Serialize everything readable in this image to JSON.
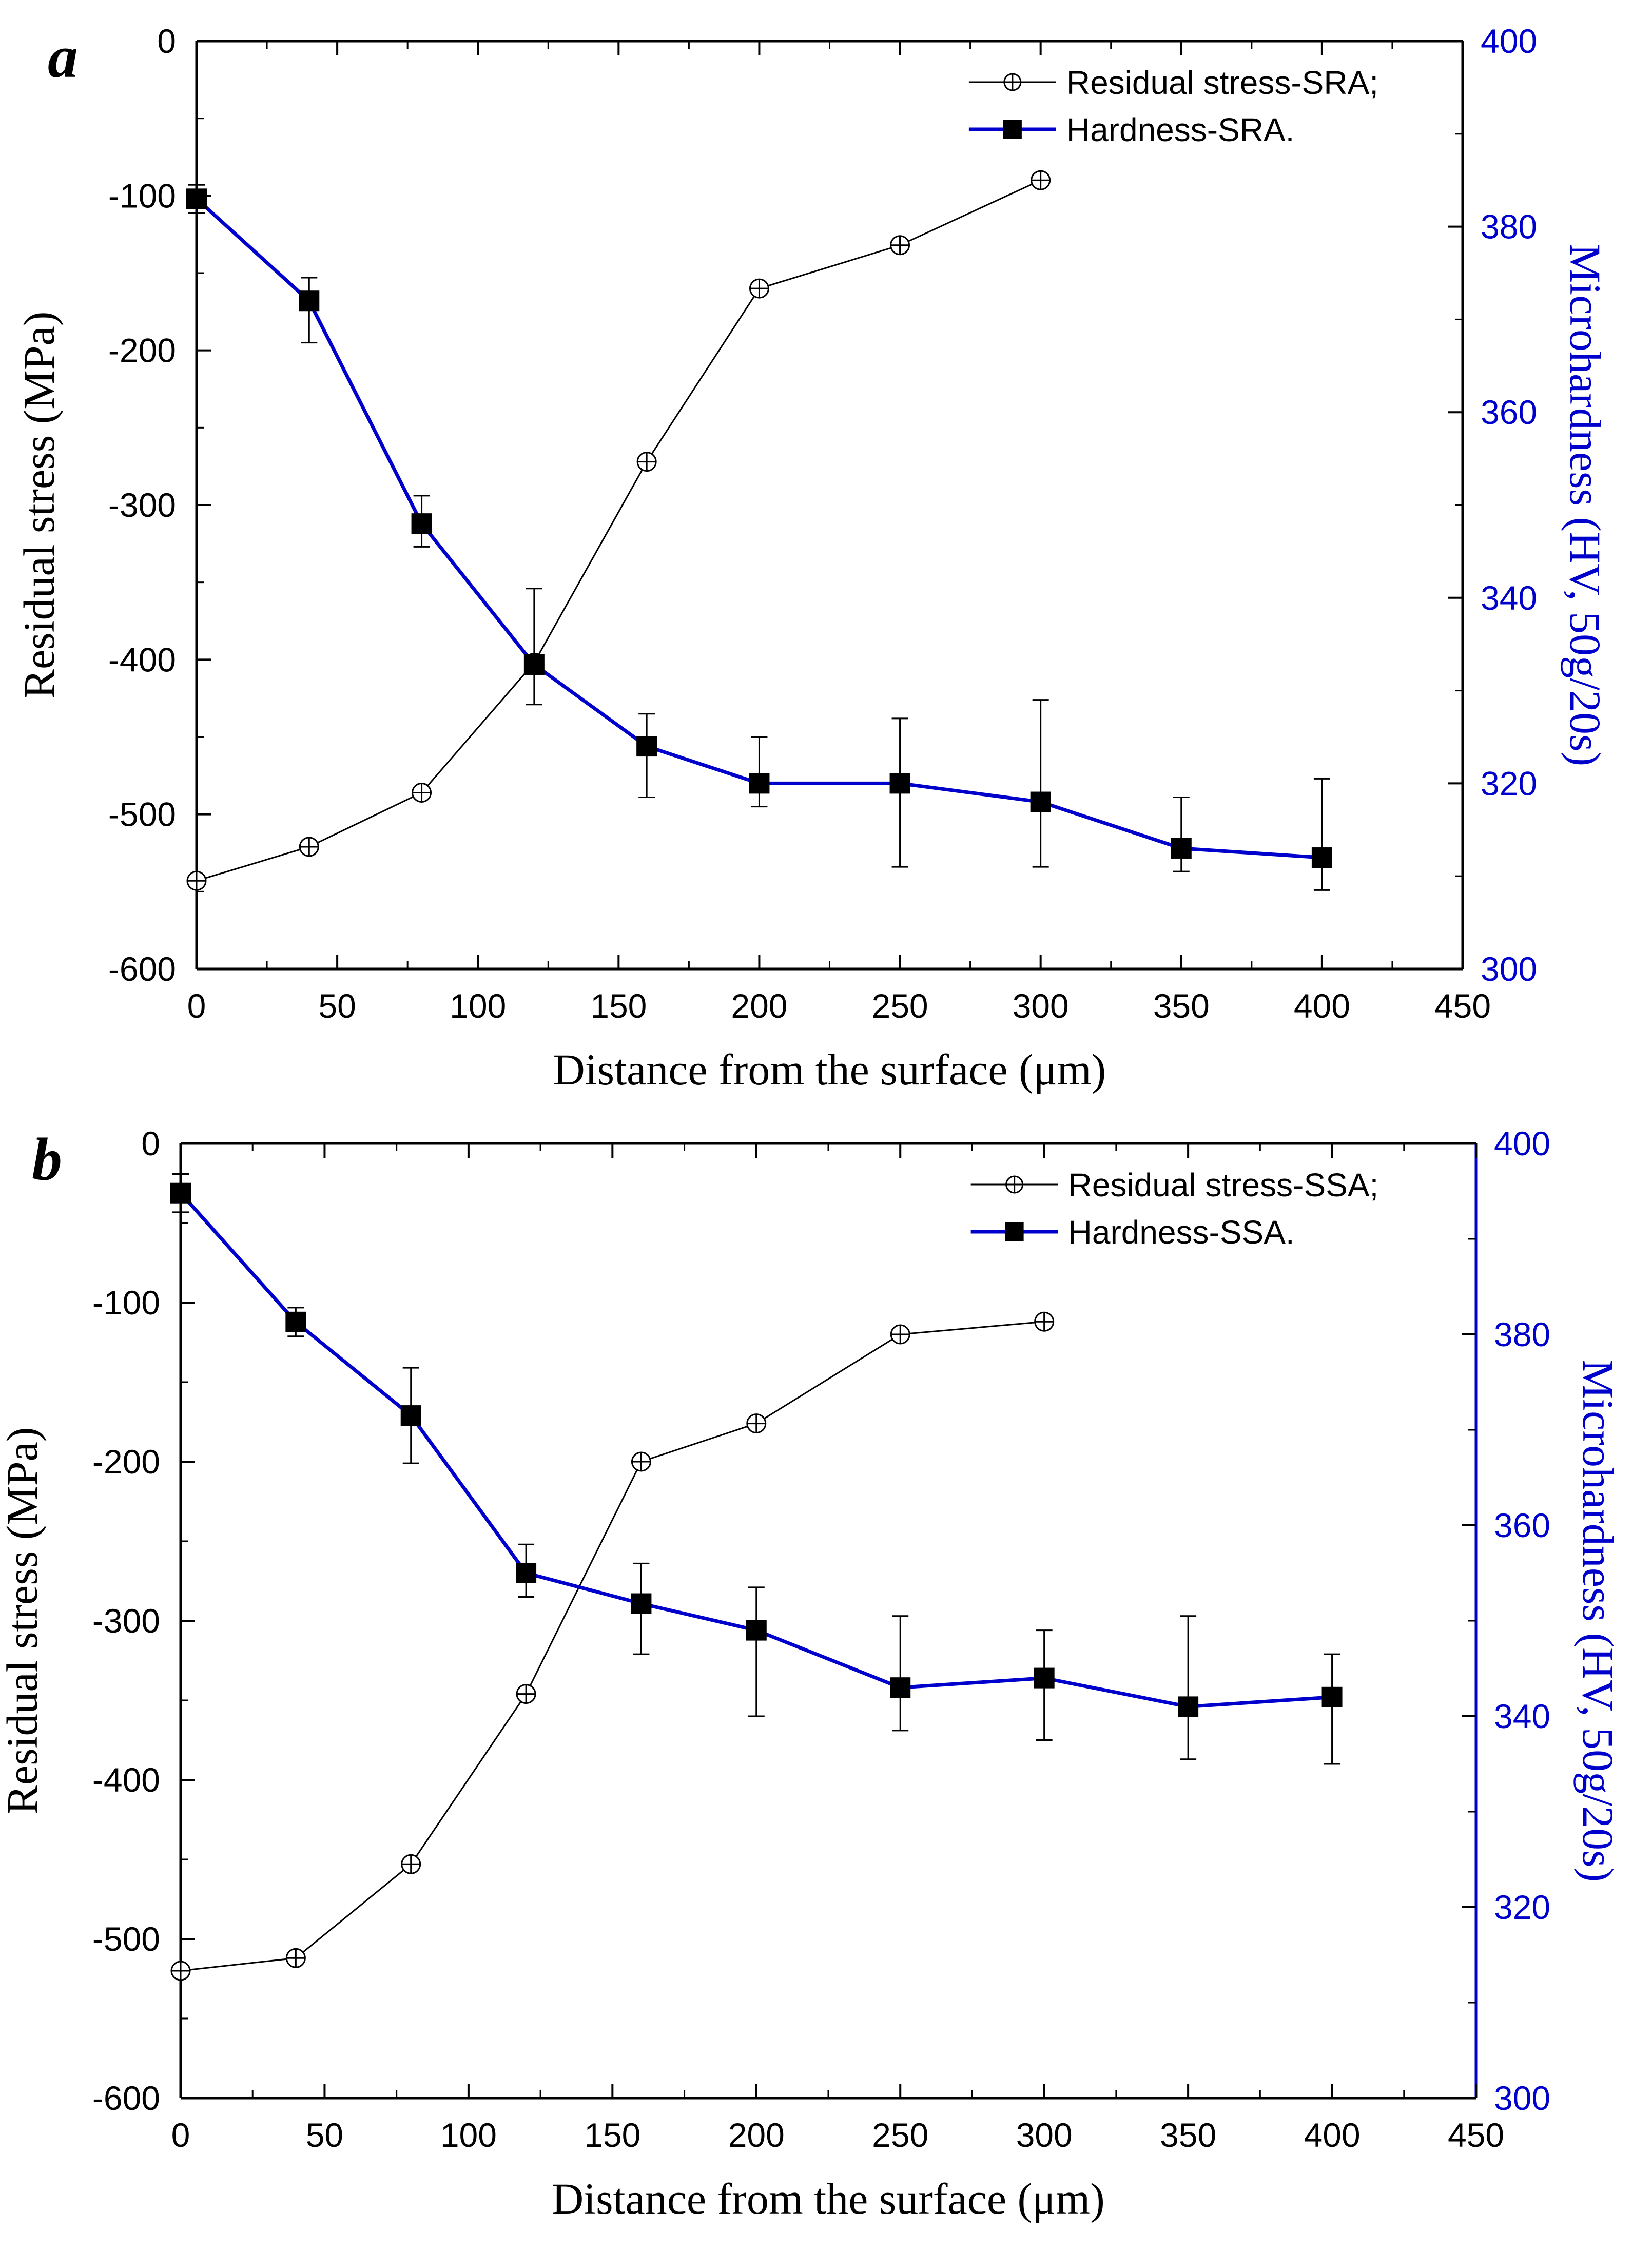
{
  "colors": {
    "axis": "#000000",
    "hardness": "#0000CC",
    "stress": "#000000",
    "right_axis_text": "#0000CC"
  },
  "chart_data": [
    {
      "panel_label": "a",
      "type": "line",
      "xlabel": "Distance from the surface (μm)",
      "ylabel": "Residual stress (MPa)",
      "y2label": "Microhardness (HV, 50g/20s)",
      "xlim": [
        0,
        450
      ],
      "ylim": [
        -600,
        0
      ],
      "y2lim": [
        300,
        400
      ],
      "x_ticks": [
        "0",
        "50",
        "100",
        "150",
        "200",
        "250",
        "300",
        "350",
        "400",
        "450"
      ],
      "y_ticks": [
        "0",
        "-100",
        "-200",
        "-300",
        "-400",
        "-500",
        "-600"
      ],
      "y2_ticks": [
        "400",
        "380",
        "360",
        "340",
        "320",
        "300"
      ],
      "legend_position": "top-right",
      "series": [
        {
          "name": "Residual stress-SRA;",
          "axis": "left",
          "marker": "circle-plus",
          "x": [
            0,
            40,
            80,
            120,
            160,
            200,
            250,
            300
          ],
          "values": [
            -543,
            -521,
            -486,
            -402,
            -272,
            -160,
            -132,
            -90
          ]
        },
        {
          "name": "Hardness-SRA.",
          "axis": "right",
          "marker": "square",
          "x": [
            0,
            40,
            80,
            120,
            160,
            200,
            250,
            300,
            350,
            400
          ],
          "values": [
            383.0,
            372.0,
            348.0,
            332.8,
            324.0,
            320.0,
            320.0,
            318.0,
            313.0,
            312.0
          ],
          "err_upper": [
            384.5,
            374.5,
            351.0,
            341.0,
            327.5,
            325.0,
            327.0,
            329.0,
            318.5,
            320.5
          ],
          "err_lower": [
            381.5,
            367.5,
            345.5,
            328.5,
            318.5,
            317.5,
            311.0,
            311.0,
            310.5,
            308.5
          ]
        }
      ]
    },
    {
      "panel_label": "b",
      "type": "line",
      "xlabel": "Distance from the surface (μm)",
      "ylabel": "Residual stress (MPa)",
      "y2label": "Microhardness (HV, 50g/20s)",
      "xlim": [
        0,
        450
      ],
      "ylim": [
        -600,
        0
      ],
      "y2lim": [
        300,
        400
      ],
      "x_ticks": [
        "0",
        "50",
        "100",
        "150",
        "200",
        "250",
        "300",
        "350",
        "400",
        "450"
      ],
      "y_ticks": [
        "0",
        "-100",
        "-200",
        "-300",
        "-400",
        "-500",
        "-600"
      ],
      "y2_ticks": [
        "400",
        "380",
        "360",
        "340",
        "320",
        "300"
      ],
      "legend_position": "top-right",
      "series": [
        {
          "name": "Residual stress-SSA;",
          "axis": "left",
          "marker": "circle-plus",
          "x": [
            0,
            40,
            80,
            120,
            160,
            200,
            250,
            300
          ],
          "values": [
            -520,
            -512,
            -453,
            -346,
            -200,
            -176,
            -120,
            -112
          ]
        },
        {
          "name": "Hardness-SSA.",
          "axis": "right",
          "marker": "square",
          "x": [
            0,
            40,
            80,
            120,
            160,
            200,
            250,
            300,
            350,
            400
          ],
          "values": [
            394.8,
            381.3,
            371.5,
            355.0,
            351.8,
            349.0,
            343.0,
            344.0,
            341.0,
            342.0
          ],
          "err_upper": [
            396.8,
            382.8,
            376.5,
            358.0,
            356.0,
            353.5,
            350.5,
            349.0,
            350.5,
            346.5
          ],
          "err_lower": [
            392.8,
            379.8,
            366.5,
            352.5,
            346.5,
            340.0,
            338.5,
            337.5,
            335.5,
            335.0
          ]
        }
      ]
    }
  ]
}
